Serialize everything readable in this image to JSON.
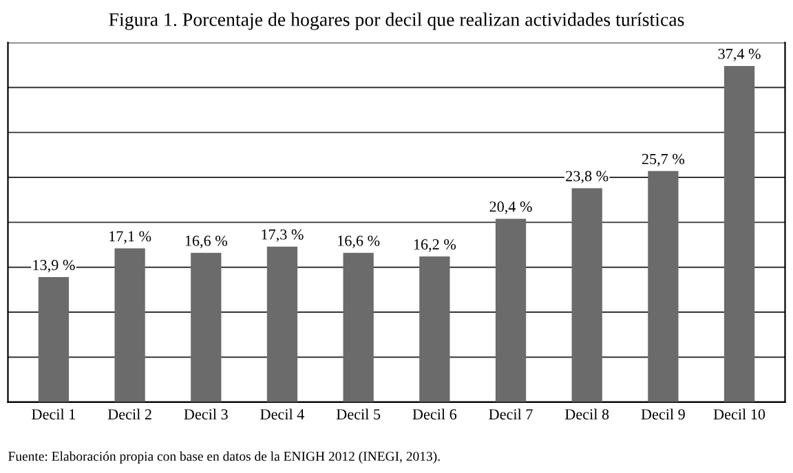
{
  "chart_data": {
    "type": "bar",
    "title": "Figura 1. Porcentaje de hogares por decil que realizan actividades turísticas",
    "categories": [
      "Decil 1",
      "Decil 2",
      "Decil 3",
      "Decil 4",
      "Decil 5",
      "Decil 6",
      "Decil 7",
      "Decil 8",
      "Decil 9",
      "Decil 10"
    ],
    "values": [
      13.9,
      17.1,
      16.6,
      17.3,
      16.6,
      16.2,
      20.4,
      23.8,
      25.7,
      37.4
    ],
    "value_labels": [
      "13,9 %",
      "17,1 %",
      "16,6 %",
      "17,3 %",
      "16,6 %",
      "16,2 %",
      "20,4 %",
      "23,8 %",
      "25,7 %",
      "37,4 %"
    ],
    "color": "#6b6b6b",
    "ylim": [
      0,
      40
    ],
    "yticks": [
      {
        "value": 0,
        "label": null
      },
      {
        "value": 5,
        "label": null
      },
      {
        "value": 10,
        "label": null
      },
      {
        "value": 15,
        "label": null
      },
      {
        "value": 20,
        "label": null
      },
      {
        "value": 25,
        "label": null
      },
      {
        "value": 30,
        "label": null
      },
      {
        "value": 35,
        "label": null
      },
      {
        "value": 40,
        "label": null
      }
    ],
    "grid": "y",
    "tick_labels": "x",
    "annotations": [
      "Fuente: Elaboración propia con base en datos de la ENIGH 2012 (INEGI, 2013)."
    ]
  }
}
